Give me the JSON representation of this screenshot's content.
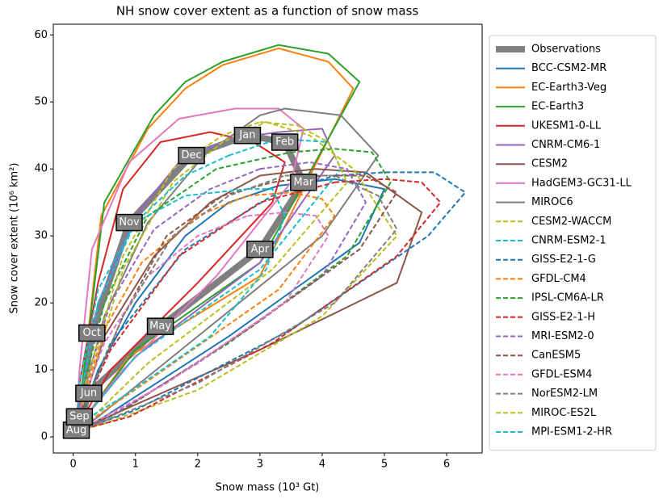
{
  "chart_data": {
    "type": "line",
    "title": "NH snow cover extent as a function of snow mass",
    "x_label": "Snow mass (10³ Gt)",
    "y_label": "Snow cover extent (10⁶ km²)",
    "xlim": [
      -0.32,
      6.57
    ],
    "ylim": [
      -2.4,
      61.6
    ],
    "xticks": [
      0,
      1,
      2,
      3,
      4,
      5,
      6
    ],
    "yticks": [
      0,
      10,
      20,
      30,
      40,
      50,
      60
    ],
    "closed": true,
    "legend": "right",
    "series": [
      {
        "name": "Observations",
        "color": "#808080",
        "linestyle": "thick",
        "x": [
          2.8,
          3.4,
          3.7,
          3.0,
          1.4,
          0.25,
          0.1,
          0.05,
          0.1,
          0.3,
          0.9,
          1.9
        ],
        "values": [
          45,
          44,
          38,
          28,
          16.5,
          6.5,
          2,
          1,
          3,
          15.5,
          32,
          42
        ],
        "point_labels": [
          "Jan",
          "Feb",
          "Mar",
          "Apr",
          "May",
          "Jun",
          null,
          "Aug",
          "Sep",
          "Oct",
          "Nov",
          "Dec"
        ]
      },
      {
        "name": "BCC-CSM2-MR",
        "color": "#1f77b4",
        "linestyle": "solid",
        "x": [
          2.5,
          3.3,
          4.2,
          5.0,
          4.6,
          2.5,
          0.5,
          0.1,
          0.1,
          0.4,
          1.0,
          1.8
        ],
        "values": [
          35,
          37.5,
          38.5,
          37,
          29,
          15,
          3,
          1,
          2,
          10,
          20,
          30
        ]
      },
      {
        "name": "EC-Earth3-Veg",
        "color": "#ff7f0e",
        "linestyle": "solid",
        "x": [
          2.4,
          3.3,
          4.1,
          4.5,
          3.0,
          0.9,
          0.2,
          0.1,
          0.15,
          0.45,
          1.2,
          1.8
        ],
        "values": [
          55.5,
          58,
          56,
          52,
          24,
          12,
          3,
          1.5,
          8,
          33,
          46,
          52
        ]
      },
      {
        "name": "EC-Earth3",
        "color": "#2ca02c",
        "linestyle": "solid",
        "x": [
          2.4,
          3.3,
          4.1,
          4.6,
          3.0,
          1.0,
          0.2,
          0.1,
          0.15,
          0.5,
          1.3,
          1.8
        ],
        "values": [
          56,
          58.5,
          57.2,
          53,
          26,
          13,
          3,
          1.5,
          8,
          35,
          48,
          53
        ]
      },
      {
        "name": "UKESM1-0-LL",
        "color": "#d62728",
        "linestyle": "solid",
        "x": [
          2.2,
          2.9,
          3.4,
          3.2,
          2.0,
          0.6,
          0.1,
          0.05,
          0.1,
          0.4,
          0.8,
          1.4
        ],
        "values": [
          45.5,
          44,
          41,
          35,
          23,
          10,
          2,
          1,
          8,
          23,
          37,
          44
        ]
      },
      {
        "name": "CNRM-CM6-1",
        "color": "#9467bd",
        "linestyle": "solid",
        "x": [
          2.5,
          3.3,
          4.0,
          4.2,
          3.0,
          1.0,
          0.2,
          0.1,
          0.1,
          0.4,
          1.0,
          1.7
        ],
        "values": [
          44.5,
          45.5,
          46,
          42,
          26,
          12,
          3,
          1,
          5,
          20,
          33,
          41
        ]
      },
      {
        "name": "CESM2",
        "color": "#8c564b",
        "linestyle": "solid",
        "x": [
          3.0,
          3.9,
          4.7,
          5.6,
          5.2,
          3.0,
          0.8,
          0.1,
          0.1,
          0.5,
          1.3,
          2.2
        ],
        "values": [
          39,
          40,
          39.5,
          33.5,
          23,
          13,
          4,
          1,
          3,
          15,
          27,
          35
        ]
      },
      {
        "name": "HadGEM3-GC31-LL",
        "color": "#e377c2",
        "linestyle": "solid",
        "x": [
          2.6,
          3.3,
          3.7,
          3.5,
          2.3,
          0.8,
          0.1,
          0.05,
          0.1,
          0.3,
          0.9,
          1.7
        ],
        "values": [
          49,
          49,
          46,
          38,
          24,
          10,
          2,
          1,
          10,
          28,
          41,
          47.5
        ]
      },
      {
        "name": "MIROC6",
        "color": "#7f7f7f",
        "linestyle": "solid",
        "x": [
          3.0,
          3.4,
          4.3,
          4.9,
          4.0,
          2.0,
          0.4,
          0.1,
          0.1,
          0.5,
          1.2,
          2.1
        ],
        "values": [
          48,
          49,
          48,
          42,
          30,
          15,
          3,
          1,
          4,
          18,
          32,
          42
        ]
      },
      {
        "name": "CESM2-WACCM",
        "color": "#bcbd22",
        "linestyle": "dashed",
        "x": [
          3.1,
          3.8,
          4.5,
          5.2,
          4.0,
          2.0,
          0.5,
          0.1,
          0.2,
          0.8,
          1.6,
          2.4
        ],
        "values": [
          47,
          45,
          40,
          30,
          18,
          7,
          2,
          1,
          6,
          25,
          38,
          44
        ]
      },
      {
        "name": "CNRM-ESM2-1",
        "color": "#17becf",
        "linestyle": "dashed",
        "x": [
          2.5,
          3.3,
          4.1,
          4.3,
          3.0,
          1.0,
          0.2,
          0.1,
          0.1,
          0.4,
          1.0,
          1.8
        ],
        "values": [
          42,
          44.5,
          44,
          40,
          25,
          12,
          3,
          1,
          5,
          20,
          32,
          39
        ]
      },
      {
        "name": "GISS-E2-1-G",
        "color": "#1f77b4",
        "linestyle": "dashed",
        "x": [
          4.2,
          5.0,
          5.8,
          6.3,
          5.7,
          3.5,
          1.0,
          0.1,
          0.1,
          0.6,
          1.8,
          3.2
        ],
        "values": [
          39,
          39.5,
          39.5,
          36.5,
          30,
          16,
          4,
          1,
          3,
          14,
          28,
          36
        ]
      },
      {
        "name": "GFDL-CM4",
        "color": "#ff7f0e",
        "linestyle": "dashed",
        "x": [
          2.8,
          3.5,
          4.0,
          4.2,
          3.3,
          1.3,
          0.2,
          0.1,
          0.1,
          0.5,
          1.1,
          2.0
        ],
        "values": [
          36,
          36.5,
          35.5,
          33,
          22,
          9,
          2,
          1,
          4,
          16,
          26,
          33
        ]
      },
      {
        "name": "IPSL-CM6A-LR",
        "color": "#2ca02c",
        "linestyle": "dashed",
        "x": [
          3.5,
          4.2,
          4.8,
          5.1,
          4.4,
          2.5,
          0.6,
          0.1,
          0.1,
          0.5,
          1.2,
          2.3
        ],
        "values": [
          42.5,
          43,
          42.5,
          38,
          27,
          14,
          3,
          1,
          5,
          20,
          33,
          40
        ]
      },
      {
        "name": "GISS-E2-1-H",
        "color": "#d62728",
        "linestyle": "dashed",
        "x": [
          4.2,
          5.0,
          5.6,
          5.9,
          5.2,
          3.2,
          0.9,
          0.1,
          0.1,
          0.6,
          1.7,
          3.0
        ],
        "values": [
          38,
          38.5,
          38,
          35,
          27,
          14,
          3,
          1,
          3,
          13,
          27,
          35
        ]
      },
      {
        "name": "MRI-ESM2-0",
        "color": "#9467bd",
        "linestyle": "dashed",
        "x": [
          3.0,
          3.8,
          4.4,
          4.7,
          4.0,
          2.0,
          0.4,
          0.1,
          0.1,
          0.6,
          1.3,
          2.2
        ],
        "values": [
          40,
          41,
          40,
          35,
          24,
          11,
          2,
          1,
          5,
          20,
          31,
          37
        ]
      },
      {
        "name": "CanESM5",
        "color": "#8c564b",
        "linestyle": "dashed",
        "x": [
          3.2,
          4.0,
          4.7,
          5.2,
          4.6,
          2.8,
          0.8,
          0.1,
          0.2,
          0.8,
          1.5,
          2.4
        ],
        "values": [
          38,
          39,
          39,
          36.5,
          28,
          16,
          4,
          1,
          5,
          18,
          30,
          36
        ]
      },
      {
        "name": "GFDL-ESM4",
        "color": "#e377c2",
        "linestyle": "dashed",
        "x": [
          2.8,
          3.4,
          3.9,
          4.1,
          3.4,
          1.5,
          0.3,
          0.1,
          0.1,
          0.5,
          1.2,
          2.0
        ],
        "values": [
          33,
          33.5,
          33,
          30,
          20,
          8,
          2,
          1,
          4,
          14,
          24,
          30
        ]
      },
      {
        "name": "NorESM2-LM",
        "color": "#7f7f7f",
        "linestyle": "dashed",
        "x": [
          3.4,
          4.2,
          4.9,
          5.2,
          4.2,
          2.0,
          0.4,
          0.1,
          0.2,
          0.8,
          1.6,
          2.5
        ],
        "values": [
          39,
          39,
          36,
          31,
          20,
          8,
          2,
          1,
          5,
          18,
          30,
          36
        ]
      },
      {
        "name": "MIROC-ES2L",
        "color": "#bcbd22",
        "linestyle": "dashed",
        "x": [
          3.0,
          3.6,
          4.1,
          4.4,
          3.2,
          1.2,
          0.2,
          0.1,
          0.2,
          0.8,
          1.6,
          2.4
        ],
        "values": [
          47,
          46.5,
          44,
          38,
          25,
          11,
          2,
          1,
          8,
          27,
          40,
          45
        ]
      },
      {
        "name": "MPI-ESM1-2-HR",
        "color": "#17becf",
        "linestyle": "dashed",
        "x": [
          2.8,
          3.2,
          3.4,
          3.1,
          2.2,
          0.8,
          0.1,
          0.05,
          0.1,
          0.4,
          1.0,
          1.8
        ],
        "values": [
          37,
          37,
          33,
          25,
          15,
          6,
          2,
          1,
          8,
          22,
          32,
          36
        ]
      }
    ]
  }
}
